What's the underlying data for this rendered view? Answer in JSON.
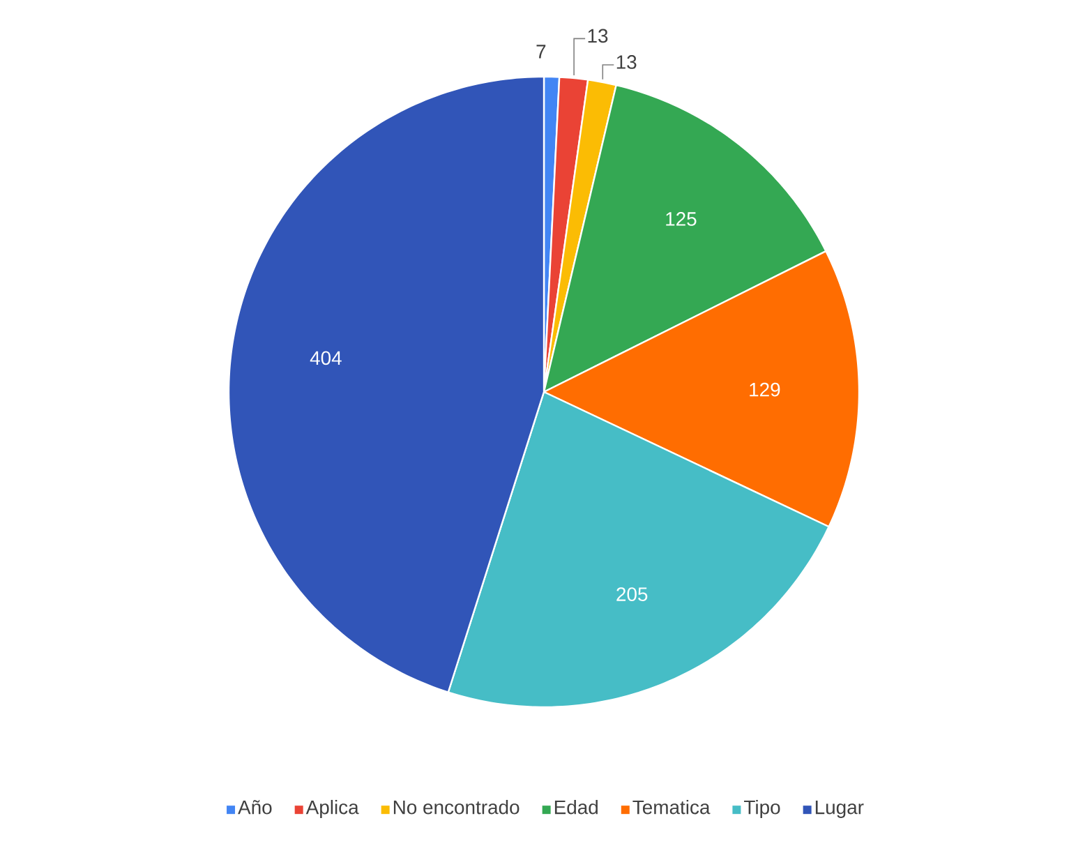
{
  "chart_data": {
    "type": "pie",
    "categories": [
      "Año",
      "Aplica",
      "No encontrado",
      "Edad",
      "Tematica",
      "Tipo",
      "Lugar"
    ],
    "values": [
      7,
      13,
      13,
      125,
      129,
      205,
      404
    ],
    "colors": [
      "#4285f4",
      "#ea4335",
      "#fbbc04",
      "#34a853",
      "#ff6d01",
      "#46bdc6",
      "#3155b8"
    ],
    "data_labels": true,
    "legend": "bottom"
  }
}
